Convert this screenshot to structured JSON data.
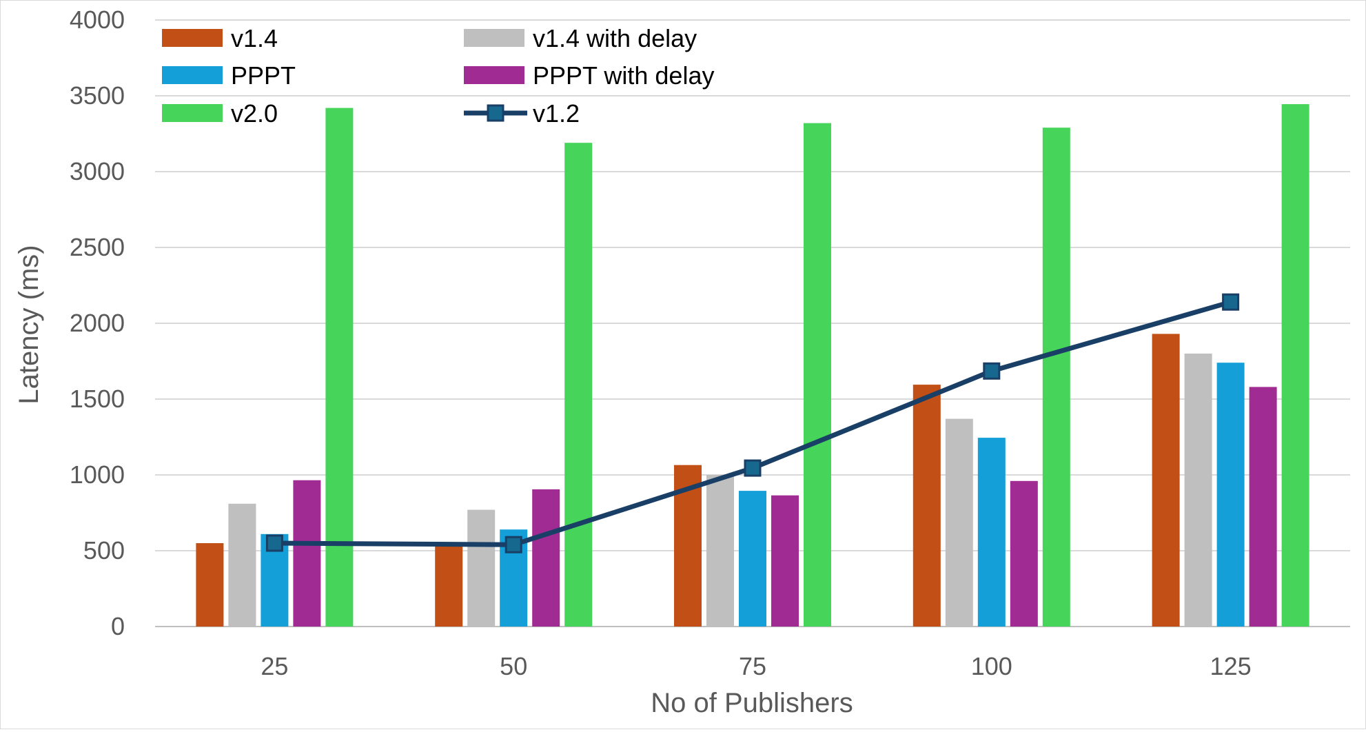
{
  "chart_data": {
    "type": "bar",
    "title": "",
    "xlabel": "No of Publishers",
    "ylabel": "Latency (ms)",
    "categories": [
      "25",
      "50",
      "75",
      "100",
      "125"
    ],
    "ylim": [
      0,
      4000
    ],
    "yticks": [
      "0",
      "500",
      "1000",
      "1500",
      "2000",
      "2500",
      "3000",
      "3500",
      "4000"
    ],
    "grid": true,
    "legend_position": "top-left",
    "series": [
      {
        "name": "v1.4",
        "type": "bar",
        "color": "#C0504D",
        "fill": "#C14F16",
        "values": [
          550,
          545,
          1065,
          1595,
          1930
        ]
      },
      {
        "name": "v1.4 with delay",
        "type": "bar",
        "color": "#BFBFBF",
        "values": [
          810,
          770,
          1000,
          1370,
          1800
        ]
      },
      {
        "name": "PPPT",
        "type": "bar",
        "color": "#149FD8",
        "values": [
          610,
          640,
          895,
          1245,
          1740
        ]
      },
      {
        "name": "PPPT with delay",
        "type": "bar",
        "color": "#A02B93",
        "values": [
          965,
          905,
          865,
          960,
          1580
        ]
      },
      {
        "name": "v2.0",
        "type": "bar",
        "color": "#47D45A",
        "values": [
          3420,
          3190,
          3320,
          3290,
          3445
        ]
      },
      {
        "name": "v1.2",
        "type": "line",
        "color": "#1A3F66",
        "marker_color": "#16688F",
        "marker": "square",
        "values": [
          550,
          540,
          1045,
          1685,
          2140
        ]
      }
    ]
  }
}
